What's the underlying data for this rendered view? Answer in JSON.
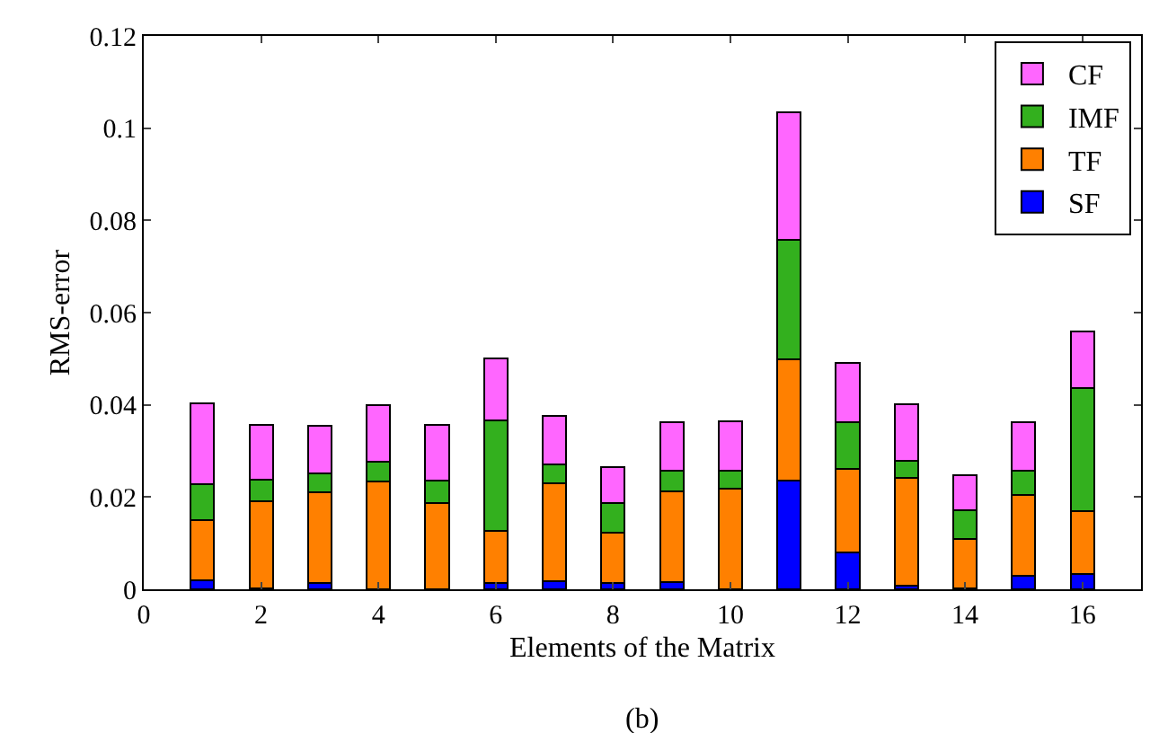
{
  "chart_data": {
    "type": "bar",
    "stacked": true,
    "xlabel": "Elements of the Matrix",
    "ylabel": "RMS-error",
    "annotations": [
      "(b)"
    ],
    "x": [
      1,
      2,
      3,
      4,
      5,
      6,
      7,
      8,
      9,
      10,
      11,
      12,
      13,
      14,
      15,
      16
    ],
    "xlim": [
      0,
      17
    ],
    "xticks": [
      0,
      2,
      4,
      6,
      8,
      10,
      12,
      14,
      16
    ],
    "ylim": [
      0,
      0.12
    ],
    "yticks": [
      0,
      0.02,
      0.04,
      0.06,
      0.08,
      0.1,
      0.12
    ],
    "grid": false,
    "legend": "top right",
    "series": [
      {
        "name": "SF",
        "color": "#0000ff",
        "values": [
          0.002,
          0.0002,
          0.0013,
          null,
          null,
          0.0013,
          0.0017,
          0.0013,
          0.0016,
          null,
          0.0235,
          0.008,
          0.0008,
          0.0002,
          0.003,
          0.0033
        ]
      },
      {
        "name": "TF",
        "color": "#ff8000",
        "values": [
          0.013,
          0.0188,
          0.0197,
          0.0234,
          0.0187,
          0.0114,
          0.0213,
          0.011,
          0.0197,
          0.0218,
          0.0263,
          0.0182,
          0.0233,
          0.0108,
          0.0174,
          0.0137
        ]
      },
      {
        "name": "IMF",
        "color": "#33b01e",
        "values": [
          0.0077,
          0.0048,
          0.0042,
          0.0042,
          0.0048,
          0.024,
          0.0041,
          0.0064,
          0.0045,
          0.0039,
          0.026,
          0.0101,
          0.0037,
          0.0062,
          0.0053,
          0.0266
        ]
      },
      {
        "name": "CF",
        "color": "#ff66ff",
        "values": [
          0.0176,
          0.0118,
          0.0102,
          0.0123,
          0.0122,
          0.0133,
          0.0105,
          0.0077,
          0.0105,
          0.0107,
          0.0276,
          0.0127,
          0.0123,
          0.0076,
          0.0106,
          0.0123
        ]
      }
    ]
  }
}
